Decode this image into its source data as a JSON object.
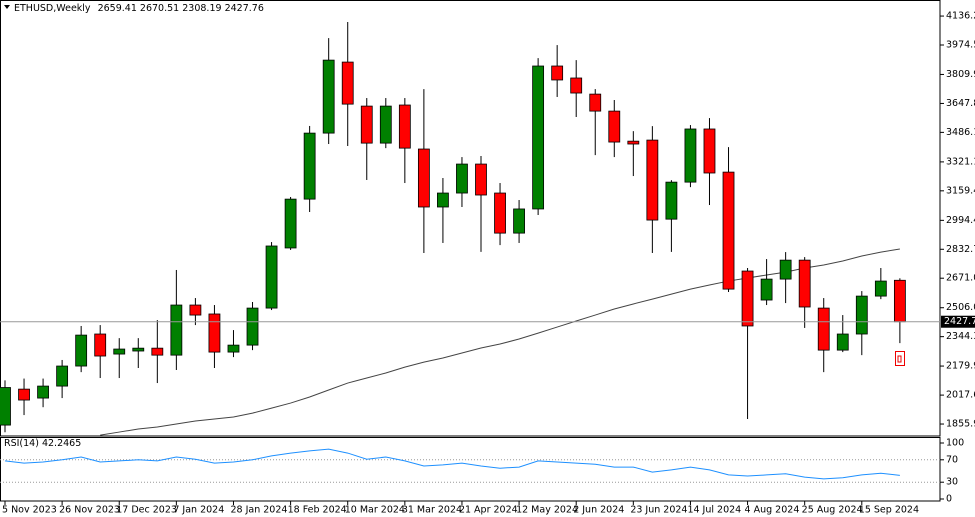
{
  "chart_data": [
    {
      "type": "candlestick",
      "title": "ETHUSD,Weekly",
      "categories": [
        "5 Nov 2023",
        null,
        null,
        "26 Nov 2023",
        null,
        null,
        "17 Dec 2023",
        null,
        null,
        "7 Jan 2024",
        null,
        null,
        "28 Jan 2024",
        null,
        null,
        "18 Feb 2024",
        null,
        null,
        "10 Mar 2024",
        null,
        null,
        "31 Mar 2024",
        null,
        null,
        "21 Apr 2024",
        null,
        null,
        "12 May 2024",
        null,
        null,
        "2 Jun 2024",
        null,
        null,
        "23 Jun 2024",
        null,
        null,
        "14 Jul 2024",
        null,
        null,
        "4 Aug 2024",
        null,
        null,
        "25 Aug 2024",
        null,
        null,
        "15 Sep 2024",
        null,
        null
      ],
      "open": [
        1850,
        2051,
        2001,
        2068,
        2180,
        2359,
        2247,
        2264,
        2280,
        2241,
        2521,
        2471,
        2258,
        2297,
        2504,
        2840,
        3113,
        3482,
        3879,
        3633,
        3426,
        3639,
        3393,
        3069,
        3147,
        3309,
        3147,
        2923,
        3058,
        3857,
        3790,
        3700,
        3605,
        3437,
        3443,
        3001,
        3208,
        3505,
        3264,
        2711,
        2549,
        2666,
        2772,
        2504,
        2269,
        2359,
        2571,
        2659.41
      ],
      "high": [
        2100,
        2110,
        2110,
        2214,
        2404,
        2409,
        2336,
        2336,
        2437,
        2717,
        2560,
        2521,
        2381,
        2538,
        2873,
        3125,
        3522,
        4013,
        4103,
        3678,
        3678,
        3678,
        3728,
        3231,
        3348,
        3354,
        3203,
        3108,
        3901,
        3974,
        3890,
        3728,
        3667,
        3493,
        3521,
        3219,
        3527,
        3566,
        3404,
        2728,
        2778,
        2817,
        2789,
        2560,
        2465,
        2599,
        2728,
        2670.51
      ],
      "low": [
        1810,
        1906,
        1950,
        2001,
        2146,
        2113,
        2113,
        2169,
        2085,
        2158,
        2409,
        2169,
        2230,
        2269,
        2493,
        2829,
        3041,
        3421,
        3410,
        3220,
        3398,
        3203,
        2812,
        2868,
        3069,
        2818,
        2856,
        2868,
        3024,
        3684,
        3572,
        3359,
        3348,
        3242,
        2812,
        2818,
        3180,
        3080,
        2594,
        1884,
        2521,
        2532,
        2393,
        2146,
        2258,
        2241,
        2554,
        2308.19
      ],
      "close": [
        2060,
        1990,
        2068,
        2180,
        2353,
        2236,
        2275,
        2280,
        2241,
        2521,
        2465,
        2258,
        2297,
        2504,
        2851,
        3113,
        3482,
        3890,
        3644,
        3426,
        3633,
        3398,
        3069,
        3147,
        3309,
        3136,
        2923,
        3058,
        3857,
        3779,
        3706,
        3605,
        3432,
        3421,
        2996,
        3208,
        3505,
        3259,
        2610,
        2404,
        2666,
        2772,
        2510,
        2269,
        2359,
        2571,
        2655,
        2427.76
      ],
      "up_color": "#008000",
      "down_color": "#ff0000",
      "overlay": {
        "color": "#444444",
        "values": [
          null,
          null,
          null,
          null,
          null,
          1794,
          1811,
          1828,
          1839,
          1856,
          1873,
          1884,
          1895,
          1917,
          1945,
          1973,
          2007,
          2046,
          2085,
          2113,
          2141,
          2174,
          2202,
          2225,
          2253,
          2281,
          2303,
          2331,
          2364,
          2398,
          2432,
          2465,
          2499,
          2527,
          2554,
          2582,
          2610,
          2633,
          2655,
          2672,
          2689,
          2705,
          2728,
          2745,
          2767,
          2795,
          2817,
          2834
        ]
      },
      "price_line": true,
      "ylim": [
        1789,
        4226
      ],
      "yticks": [
        {
          "value": 1855.9,
          "label": "1855.90"
        },
        {
          "value": 2017.6,
          "label": "2017.60"
        },
        {
          "value": 2179.9,
          "label": "2179.90"
        },
        {
          "value": 2344.3,
          "label": "2344.30"
        },
        {
          "value": 2506,
          "label": "2506.00"
        },
        {
          "value": 2671,
          "label": "2671.00"
        },
        {
          "value": 2832.7,
          "label": "2832.70"
        },
        {
          "value": 2994.4,
          "label": "2994.40"
        },
        {
          "value": 3159.4,
          "label": "3159.40"
        },
        {
          "value": 3321.1,
          "label": "3321.10"
        },
        {
          "value": 3486.1,
          "label": "3486.10"
        },
        {
          "value": 3647.8,
          "label": "3647.80"
        },
        {
          "value": 3809.9,
          "label": "3809.90"
        },
        {
          "value": 3974.5,
          "label": "3974.50"
        },
        {
          "value": 4136.2,
          "label": "4136.20"
        }
      ]
    },
    {
      "type": "line",
      "name": "RSI(14)",
      "color": "#1e90ff",
      "values": [
        68,
        64,
        66,
        70,
        75,
        66,
        68,
        70,
        68,
        75,
        71,
        64,
        66,
        70,
        77,
        82,
        86,
        89,
        82,
        71,
        75,
        68,
        59,
        61,
        64,
        59,
        55,
        57,
        68,
        66,
        64,
        62,
        57,
        57,
        48,
        52,
        57,
        52,
        43,
        41,
        43,
        45,
        39,
        36,
        38,
        43,
        46,
        42.2465
      ],
      "ylim": [
        0,
        100
      ],
      "yticks": [
        0,
        30,
        70,
        100
      ]
    }
  ]
}
